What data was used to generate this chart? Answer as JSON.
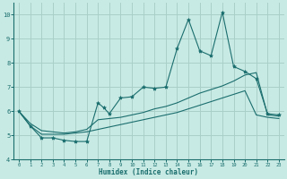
{
  "xlabel": "Humidex (Indice chaleur)",
  "xlim": [
    -0.5,
    23.5
  ],
  "ylim": [
    4,
    10.5
  ],
  "xticks": [
    0,
    1,
    2,
    3,
    4,
    5,
    6,
    7,
    8,
    9,
    10,
    11,
    12,
    13,
    14,
    15,
    16,
    17,
    18,
    19,
    20,
    21,
    22,
    23
  ],
  "yticks": [
    4,
    5,
    6,
    7,
    8,
    9,
    10
  ],
  "background_color": "#c8eae4",
  "grid_color": "#aacfc9",
  "line_color": "#1a6e6e",
  "line1_x": [
    0,
    1,
    2,
    3,
    4,
    5,
    6,
    7,
    7.5,
    8,
    9,
    10,
    11,
    12,
    13,
    14,
    15,
    16,
    17,
    18,
    19,
    20,
    21,
    22,
    23
  ],
  "line1_y": [
    6.0,
    5.4,
    4.9,
    4.9,
    4.8,
    4.75,
    4.75,
    6.35,
    6.15,
    5.9,
    6.55,
    6.6,
    7.0,
    6.95,
    7.0,
    8.6,
    9.8,
    8.5,
    8.3,
    10.1,
    7.85,
    7.65,
    7.35,
    5.9,
    5.85
  ],
  "line2_x": [
    0,
    1,
    2,
    3,
    4,
    5,
    6,
    7,
    8,
    9,
    10,
    11,
    12,
    13,
    14,
    15,
    16,
    17,
    18,
    19,
    20,
    21,
    22,
    23
  ],
  "line2_y": [
    6.0,
    5.5,
    5.2,
    5.15,
    5.1,
    5.15,
    5.25,
    5.65,
    5.7,
    5.75,
    5.85,
    5.95,
    6.1,
    6.2,
    6.35,
    6.55,
    6.75,
    6.9,
    7.05,
    7.25,
    7.5,
    7.6,
    5.85,
    5.8
  ],
  "line3_x": [
    0,
    1,
    2,
    3,
    4,
    5,
    6,
    7,
    8,
    9,
    10,
    11,
    12,
    13,
    14,
    15,
    16,
    17,
    18,
    19,
    20,
    21,
    22,
    23
  ],
  "line3_y": [
    6.0,
    5.4,
    5.05,
    5.05,
    5.05,
    5.1,
    5.15,
    5.25,
    5.35,
    5.45,
    5.55,
    5.65,
    5.75,
    5.85,
    5.95,
    6.1,
    6.25,
    6.4,
    6.55,
    6.7,
    6.85,
    5.85,
    5.75,
    5.7
  ]
}
